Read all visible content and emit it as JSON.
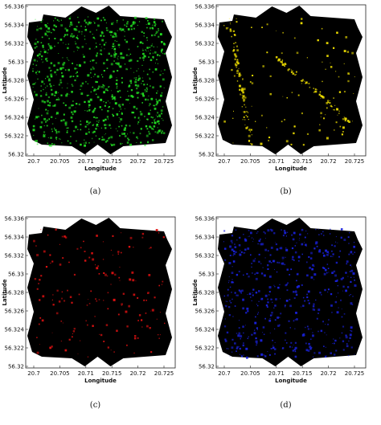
{
  "panels": [
    {
      "id": "a",
      "caption": "(a)",
      "color": "#22dd22",
      "density": 0.62,
      "xlabel": "Longitude",
      "ylabel": "Latitude",
      "xticks": [
        "20.7",
        "20.705",
        "20.71",
        "20.715",
        "20.72",
        "20.725"
      ],
      "yticks": [
        "56.336",
        "56.334",
        "56.332",
        "56.33",
        "56.328",
        "56.326",
        "56.324",
        "56.322",
        "56.32"
      ]
    },
    {
      "id": "b",
      "caption": "(b)",
      "color": "#f0e000",
      "density": 0.18,
      "xlabel": "Longitude",
      "ylabel": "Latitude",
      "xticks": [
        "20.7",
        "20.705",
        "20.71",
        "20.715",
        "20.72",
        "20.725"
      ],
      "yticks": [
        "56.336",
        "56.334",
        "56.332",
        "56.33",
        "56.328",
        "56.326",
        "56.324",
        "56.322",
        "56.32"
      ]
    },
    {
      "id": "c",
      "caption": "(c)",
      "color": "#dd1111",
      "density": 0.12,
      "xlabel": "Longitude",
      "ylabel": "Latitude",
      "xticks": [
        "20.7",
        "20.705",
        "20.71",
        "20.715",
        "20.72",
        "20.725"
      ],
      "yticks": [
        "56.336",
        "56.334",
        "56.332",
        "56.33",
        "56.328",
        "56.326",
        "56.324",
        "56.322",
        "56.32"
      ]
    },
    {
      "id": "d",
      "caption": "(d)",
      "color": "#1a22dd",
      "density": 0.38,
      "xlabel": "Longitude",
      "ylabel": "Latitude",
      "xticks": [
        "20.7",
        "20.705",
        "20.71",
        "20.715",
        "20.72",
        "20.725"
      ],
      "yticks": [
        "56.336",
        "56.334",
        "56.332",
        "56.33",
        "56.328",
        "56.326",
        "56.324",
        "56.322",
        "56.32"
      ]
    }
  ]
}
